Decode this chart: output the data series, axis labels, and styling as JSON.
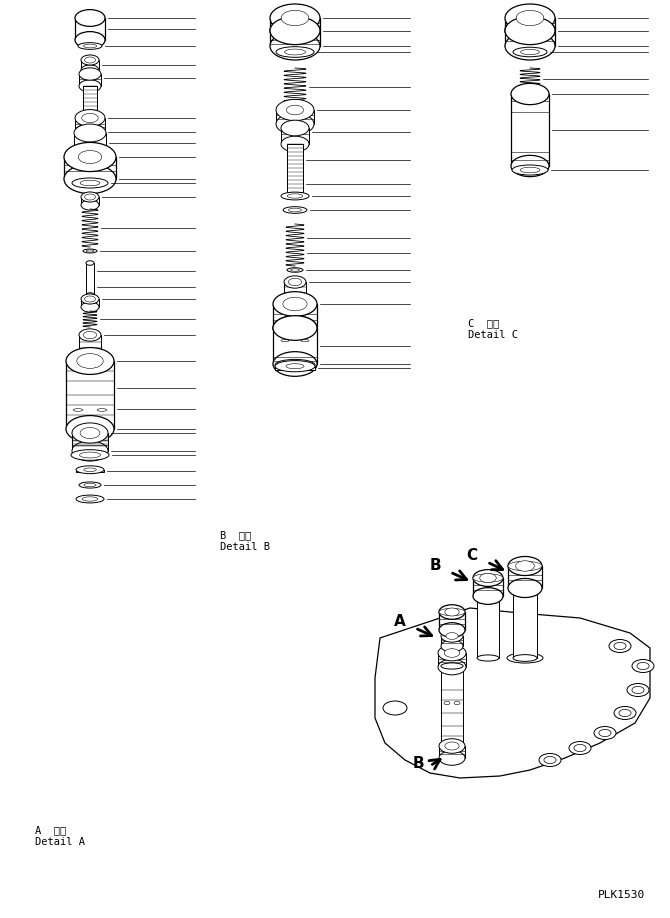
{
  "background": "#ffffff",
  "label_A_detail": [
    "A  詳細",
    "Detail A"
  ],
  "label_B_detail": [
    "B  詳細",
    "Detail B"
  ],
  "label_C_detail": [
    "C  詳細",
    "Detail C"
  ],
  "label_PLK": "PLK1530",
  "fig_w": 6.7,
  "fig_h": 9.18,
  "dpi": 100
}
